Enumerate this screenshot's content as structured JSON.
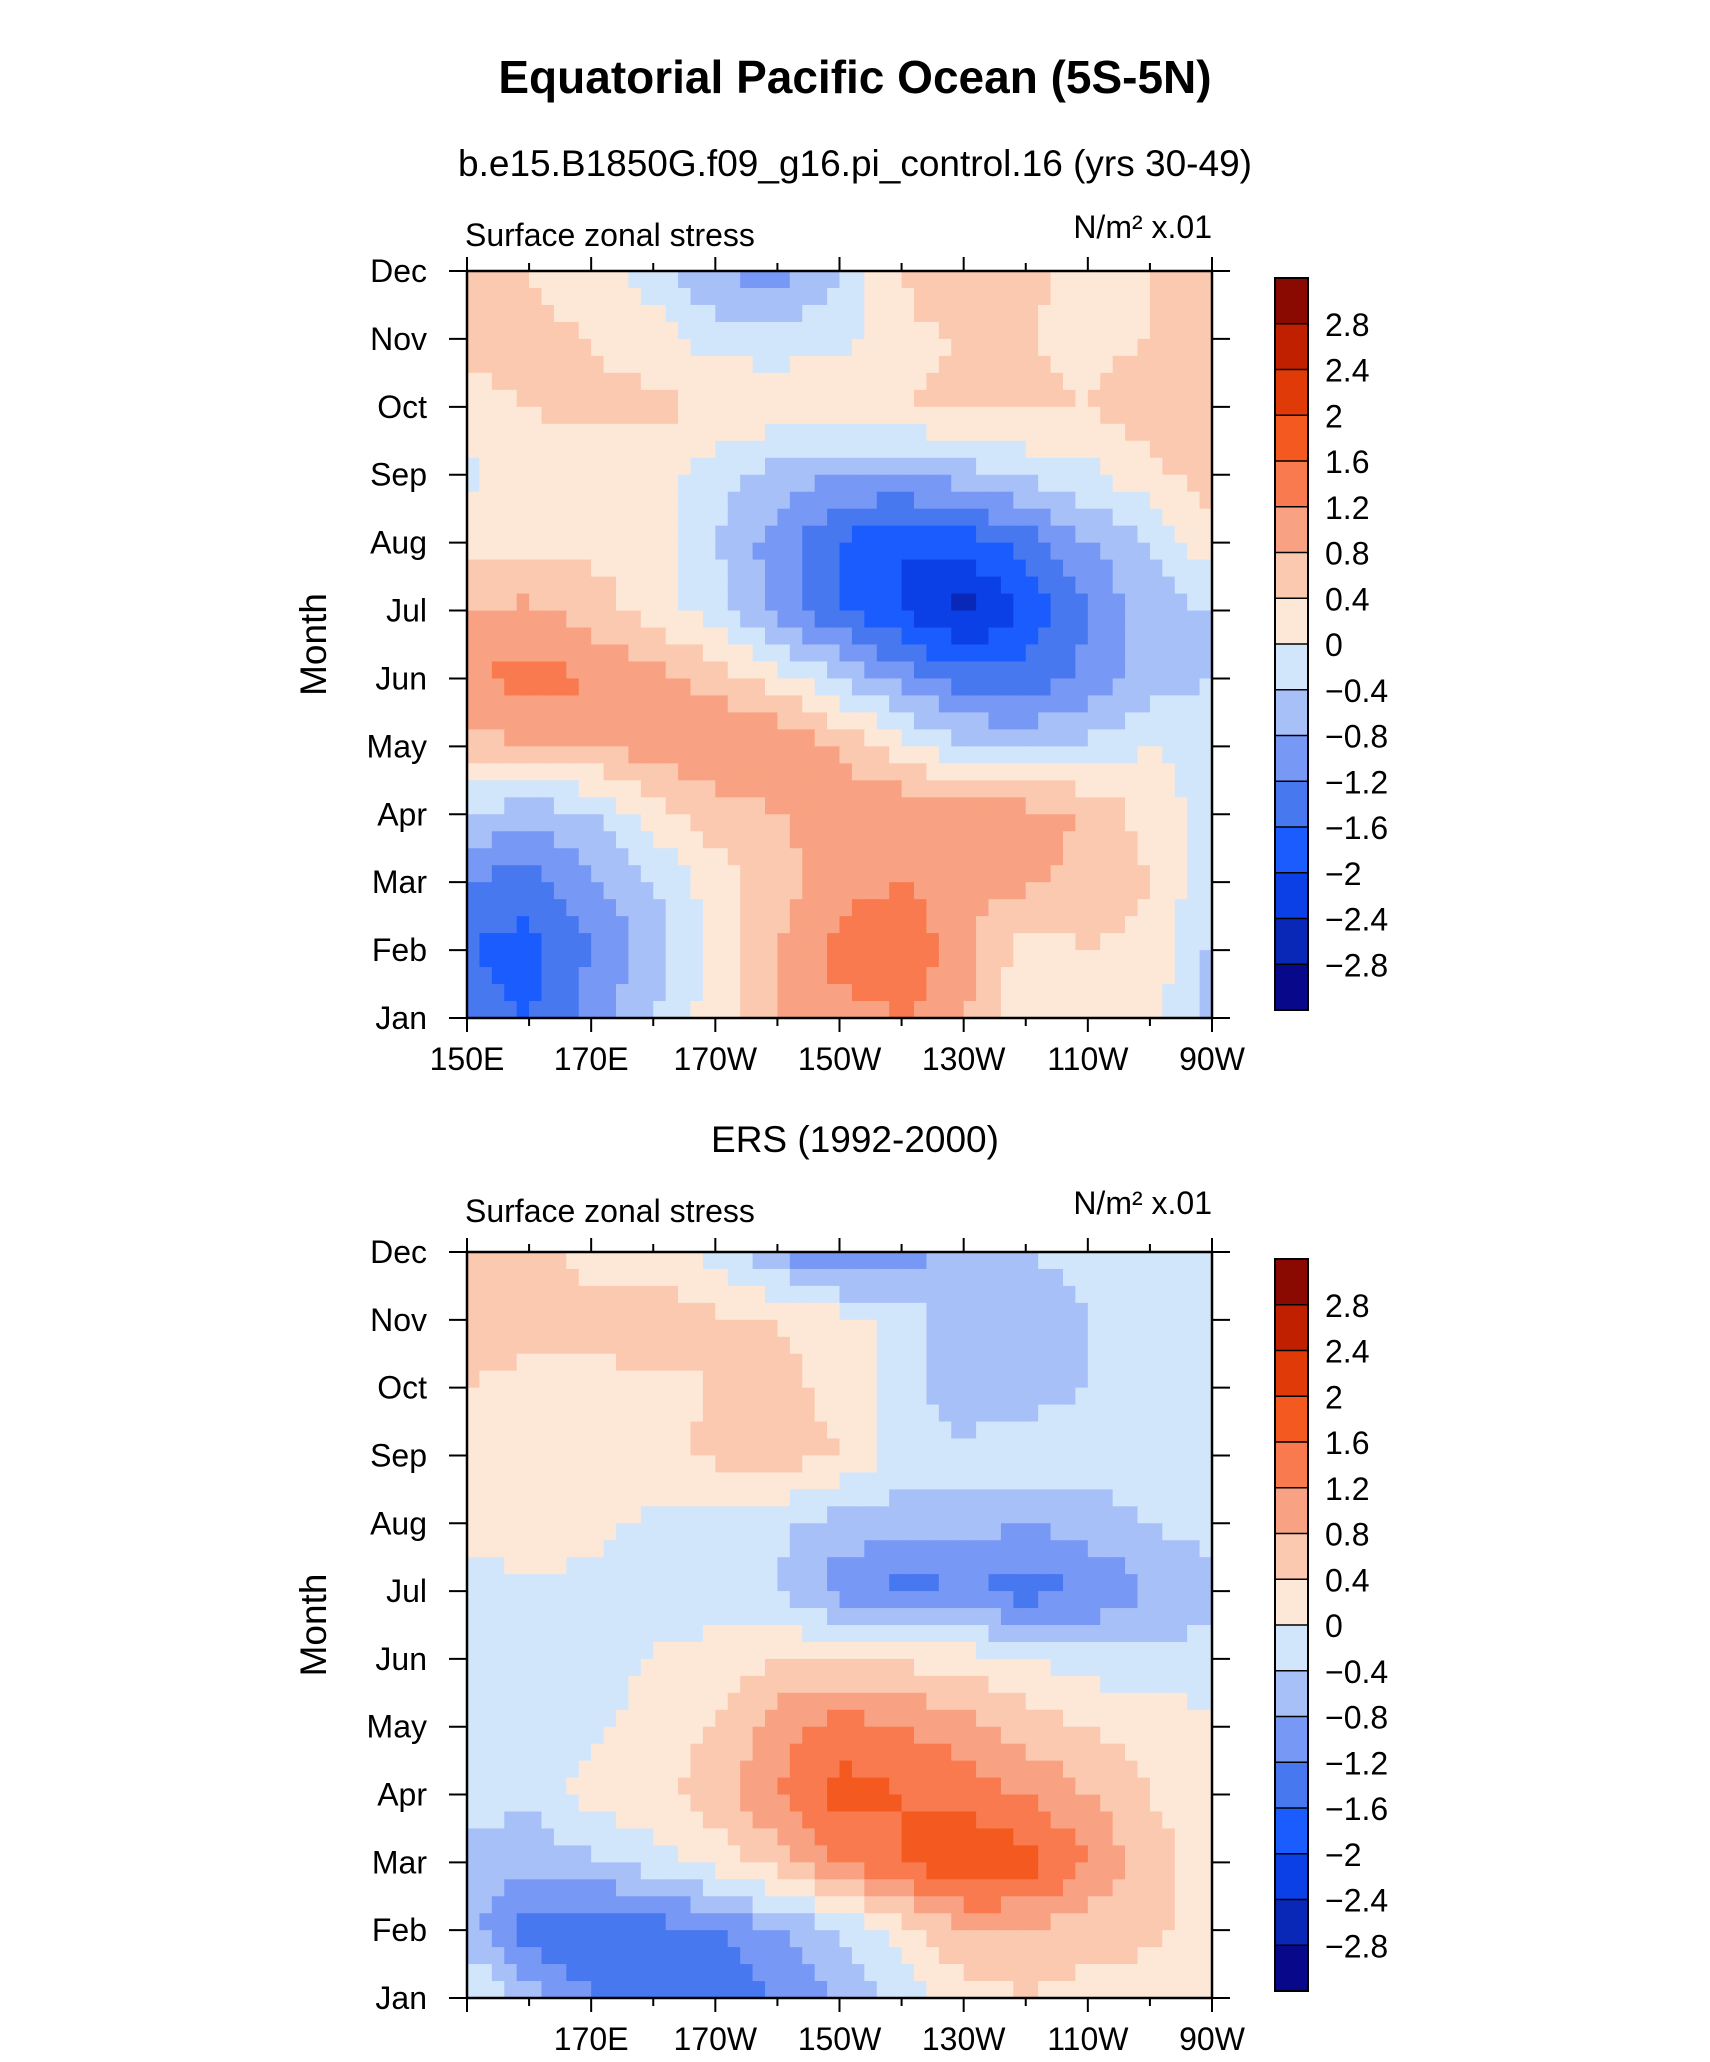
{
  "page": {
    "title": "Equatorial Pacific Ocean (5S-5N)",
    "panels": [
      {
        "case_title": "b.e15.B1850G.f09_g16.pi_control.16 (yrs 30-49)",
        "left_string": "Surface zonal stress",
        "right_string": "N/m² x.01"
      },
      {
        "case_title": "ERS (1992-2000)",
        "left_string": "Surface zonal stress",
        "right_string": "N/m² x.01"
      }
    ]
  },
  "chart_data": [
    {
      "type": "heatmap",
      "title": "b.e15.B1850G.f09_g16.pi_control.16 (yrs 30-49)",
      "variable": "Surface zonal stress",
      "units": "N/m² x.01",
      "xlabel": "",
      "ylabel": "Month",
      "x_tick_labels": [
        "150E",
        "170E",
        "170W",
        "150W",
        "130W",
        "110W",
        "90W"
      ],
      "y_tick_labels": [
        "Jan",
        "Feb",
        "Mar",
        "Apr",
        "May",
        "Jun",
        "Jul",
        "Aug",
        "Sep",
        "Oct",
        "Nov",
        "Dec"
      ],
      "xlim": [
        150,
        270
      ],
      "x": [
        150,
        160,
        170,
        180,
        190,
        200,
        210,
        220,
        230,
        240,
        250,
        260,
        270
      ],
      "months": [
        "Jan",
        "Feb",
        "Mar",
        "Apr",
        "May",
        "Jun",
        "Jul",
        "Aug",
        "Sep",
        "Oct",
        "Nov",
        "Dec"
      ],
      "values": [
        [
          -1.4,
          -1.6,
          -1.0,
          -0.4,
          0.2,
          0.8,
          1.0,
          1.2,
          0.8,
          0.1,
          0.2,
          0.2,
          -0.6
        ],
        [
          -1.6,
          -1.8,
          -1.2,
          -0.6,
          0.2,
          0.8,
          1.4,
          1.6,
          1.0,
          0.2,
          0.4,
          0.3,
          -0.5
        ],
        [
          -1.2,
          -1.4,
          -0.9,
          -0.4,
          0.2,
          0.6,
          1.0,
          1.2,
          0.8,
          0.9,
          0.6,
          0.4,
          -0.3
        ],
        [
          -0.4,
          -0.7,
          -0.4,
          0.2,
          0.6,
          0.8,
          1.0,
          1.2,
          1.0,
          1.0,
          0.8,
          0.2,
          -0.1
        ],
        [
          0.6,
          0.8,
          0.8,
          1.0,
          1.2,
          1.2,
          0.8,
          0.2,
          -0.4,
          -0.5,
          -0.3,
          0.0,
          -0.2
        ],
        [
          1.1,
          1.4,
          1.2,
          1.0,
          0.6,
          0.2,
          -0.4,
          -1.0,
          -1.4,
          -1.4,
          -1.1,
          -0.6,
          -0.4
        ],
        [
          0.8,
          0.9,
          0.6,
          0.2,
          -0.2,
          -1.0,
          -1.6,
          -2.0,
          -2.6,
          -2.0,
          -1.2,
          -0.6,
          -0.4
        ],
        [
          0.2,
          0.3,
          0.3,
          0.2,
          -0.4,
          -1.0,
          -1.6,
          -2.0,
          -1.8,
          -1.4,
          -0.8,
          -0.4,
          0.3
        ],
        [
          -0.1,
          0.2,
          0.2,
          0.1,
          -0.2,
          -0.6,
          -0.8,
          -0.8,
          -0.6,
          -0.3,
          -0.1,
          0.3,
          0.6
        ],
        [
          0.3,
          0.4,
          0.5,
          0.5,
          0.4,
          0.3,
          0.3,
          0.4,
          0.5,
          0.5,
          0.4,
          0.6,
          0.8
        ],
        [
          0.5,
          0.5,
          0.4,
          0.2,
          -0.2,
          -0.2,
          -0.1,
          0.3,
          0.4,
          0.4,
          0.3,
          0.4,
          0.5
        ],
        [
          0.6,
          0.4,
          0.2,
          -0.2,
          -0.8,
          -1.0,
          -0.4,
          0.4,
          0.8,
          0.5,
          0.3,
          0.4,
          0.4
        ]
      ],
      "colorbar": {
        "levels": [
          -2.8,
          -2.4,
          -2,
          -1.6,
          -1.2,
          -0.8,
          -0.4,
          0,
          0.4,
          0.8,
          1.2,
          1.6,
          2,
          2.4,
          2.8
        ],
        "labels": [
          "2.8",
          "2.4",
          "2",
          "1.6",
          "1.2",
          "0.8",
          "0.4",
          "0",
          "−0.4",
          "−0.8",
          "−1.2",
          "−1.6",
          "−2",
          "−2.4",
          "−2.8"
        ],
        "colors": [
          "#08088a",
          "#0a28b8",
          "#0b40e6",
          "#1b5cff",
          "#4878f0",
          "#7898f5",
          "#a8c0f8",
          "#d2e6fb",
          "#fde8d8",
          "#fbc9b0",
          "#f9a283",
          "#f87a4e",
          "#f45a20",
          "#e03a08",
          "#c02000",
          "#8a0900"
        ]
      }
    },
    {
      "type": "heatmap",
      "title": "ERS (1992-2000)",
      "variable": "Surface zonal stress",
      "units": "N/m² x.01",
      "xlabel": "",
      "ylabel": "Month",
      "x_tick_labels": [
        "170E",
        "170W",
        "150W",
        "130W",
        "110W",
        "90W"
      ],
      "y_tick_labels": [
        "Jan",
        "Feb",
        "Mar",
        "Apr",
        "May",
        "Jun",
        "Jul",
        "Aug",
        "Sep",
        "Oct",
        "Nov",
        "Dec"
      ],
      "xlim": [
        150,
        270
      ],
      "x": [
        150,
        160,
        170,
        180,
        190,
        200,
        210,
        220,
        230,
        240,
        250,
        260,
        270
      ],
      "months": [
        "Jan",
        "Feb",
        "Mar",
        "Apr",
        "May",
        "Jun",
        "Jul",
        "Aug",
        "Sep",
        "Oct",
        "Nov",
        "Dec"
      ],
      "values": [
        [
          0.1,
          -0.6,
          -1.2,
          -1.4,
          -1.6,
          -1.2,
          -0.8,
          -0.2,
          0.2,
          0.4,
          0.2,
          0.2,
          0.2
        ],
        [
          -0.6,
          -1.4,
          -1.6,
          -1.4,
          -1.2,
          -0.8,
          -0.4,
          0.2,
          0.8,
          0.8,
          0.6,
          0.5,
          0.2
        ],
        [
          -0.5,
          -0.7,
          -0.5,
          -0.2,
          0.2,
          0.6,
          1.2,
          1.6,
          2.0,
          1.8,
          1.2,
          0.6,
          0.2
        ],
        [
          -0.2,
          -0.3,
          0.2,
          0.3,
          0.6,
          1.2,
          1.8,
          1.6,
          1.4,
          1.2,
          0.8,
          0.4,
          0.1
        ],
        [
          -0.2,
          -0.2,
          -0.1,
          0.2,
          0.4,
          1.0,
          1.4,
          1.2,
          1.0,
          0.6,
          0.4,
          0.2,
          0.1
        ],
        [
          -0.4,
          -0.2,
          -0.2,
          0.0,
          0.2,
          0.4,
          0.4,
          0.3,
          0.2,
          0.0,
          -0.2,
          -0.3,
          -0.2
        ],
        [
          -0.2,
          -0.1,
          -0.1,
          -0.1,
          -0.3,
          -0.4,
          -1.0,
          -1.4,
          -1.2,
          -1.4,
          -1.2,
          -0.8,
          -0.6
        ],
        [
          0.2,
          0.3,
          0.1,
          -0.1,
          -0.2,
          -0.3,
          -0.6,
          -0.6,
          -0.6,
          -0.8,
          -0.6,
          -0.4,
          -0.2
        ],
        [
          0.3,
          0.3,
          0.3,
          0.3,
          0.5,
          0.6,
          0.4,
          -0.2,
          -0.2,
          -0.1,
          -0.2,
          -0.2,
          0.0
        ],
        [
          0.4,
          0.3,
          0.3,
          0.3,
          0.4,
          0.5,
          0.3,
          -0.2,
          -0.8,
          -0.6,
          -0.4,
          -0.2,
          0.0
        ],
        [
          0.6,
          0.5,
          0.5,
          0.7,
          0.5,
          0.4,
          0.2,
          -0.2,
          -0.6,
          -0.6,
          -0.4,
          -0.2,
          0.0
        ],
        [
          0.6,
          0.5,
          0.3,
          0.2,
          -0.2,
          -0.8,
          -1.4,
          -1.0,
          -0.6,
          -0.4,
          -0.3,
          -0.2,
          0.0
        ]
      ],
      "colorbar": {
        "levels": [
          -2.8,
          -2.4,
          -2,
          -1.6,
          -1.2,
          -0.8,
          -0.4,
          0,
          0.4,
          0.8,
          1.2,
          1.6,
          2,
          2.4,
          2.8
        ],
        "labels": [
          "2.8",
          "2.4",
          "2",
          "1.6",
          "1.2",
          "0.8",
          "0.4",
          "0",
          "−0.4",
          "−0.8",
          "−1.2",
          "−1.6",
          "−2",
          "−2.4",
          "−2.8"
        ],
        "colors": [
          "#08088a",
          "#0a28b8",
          "#0b40e6",
          "#1b5cff",
          "#4878f0",
          "#7898f5",
          "#a8c0f8",
          "#d2e6fb",
          "#fde8d8",
          "#fbc9b0",
          "#f9a283",
          "#f87a4e",
          "#f45a20",
          "#e03a08",
          "#c02000",
          "#8a0900"
        ]
      }
    }
  ]
}
